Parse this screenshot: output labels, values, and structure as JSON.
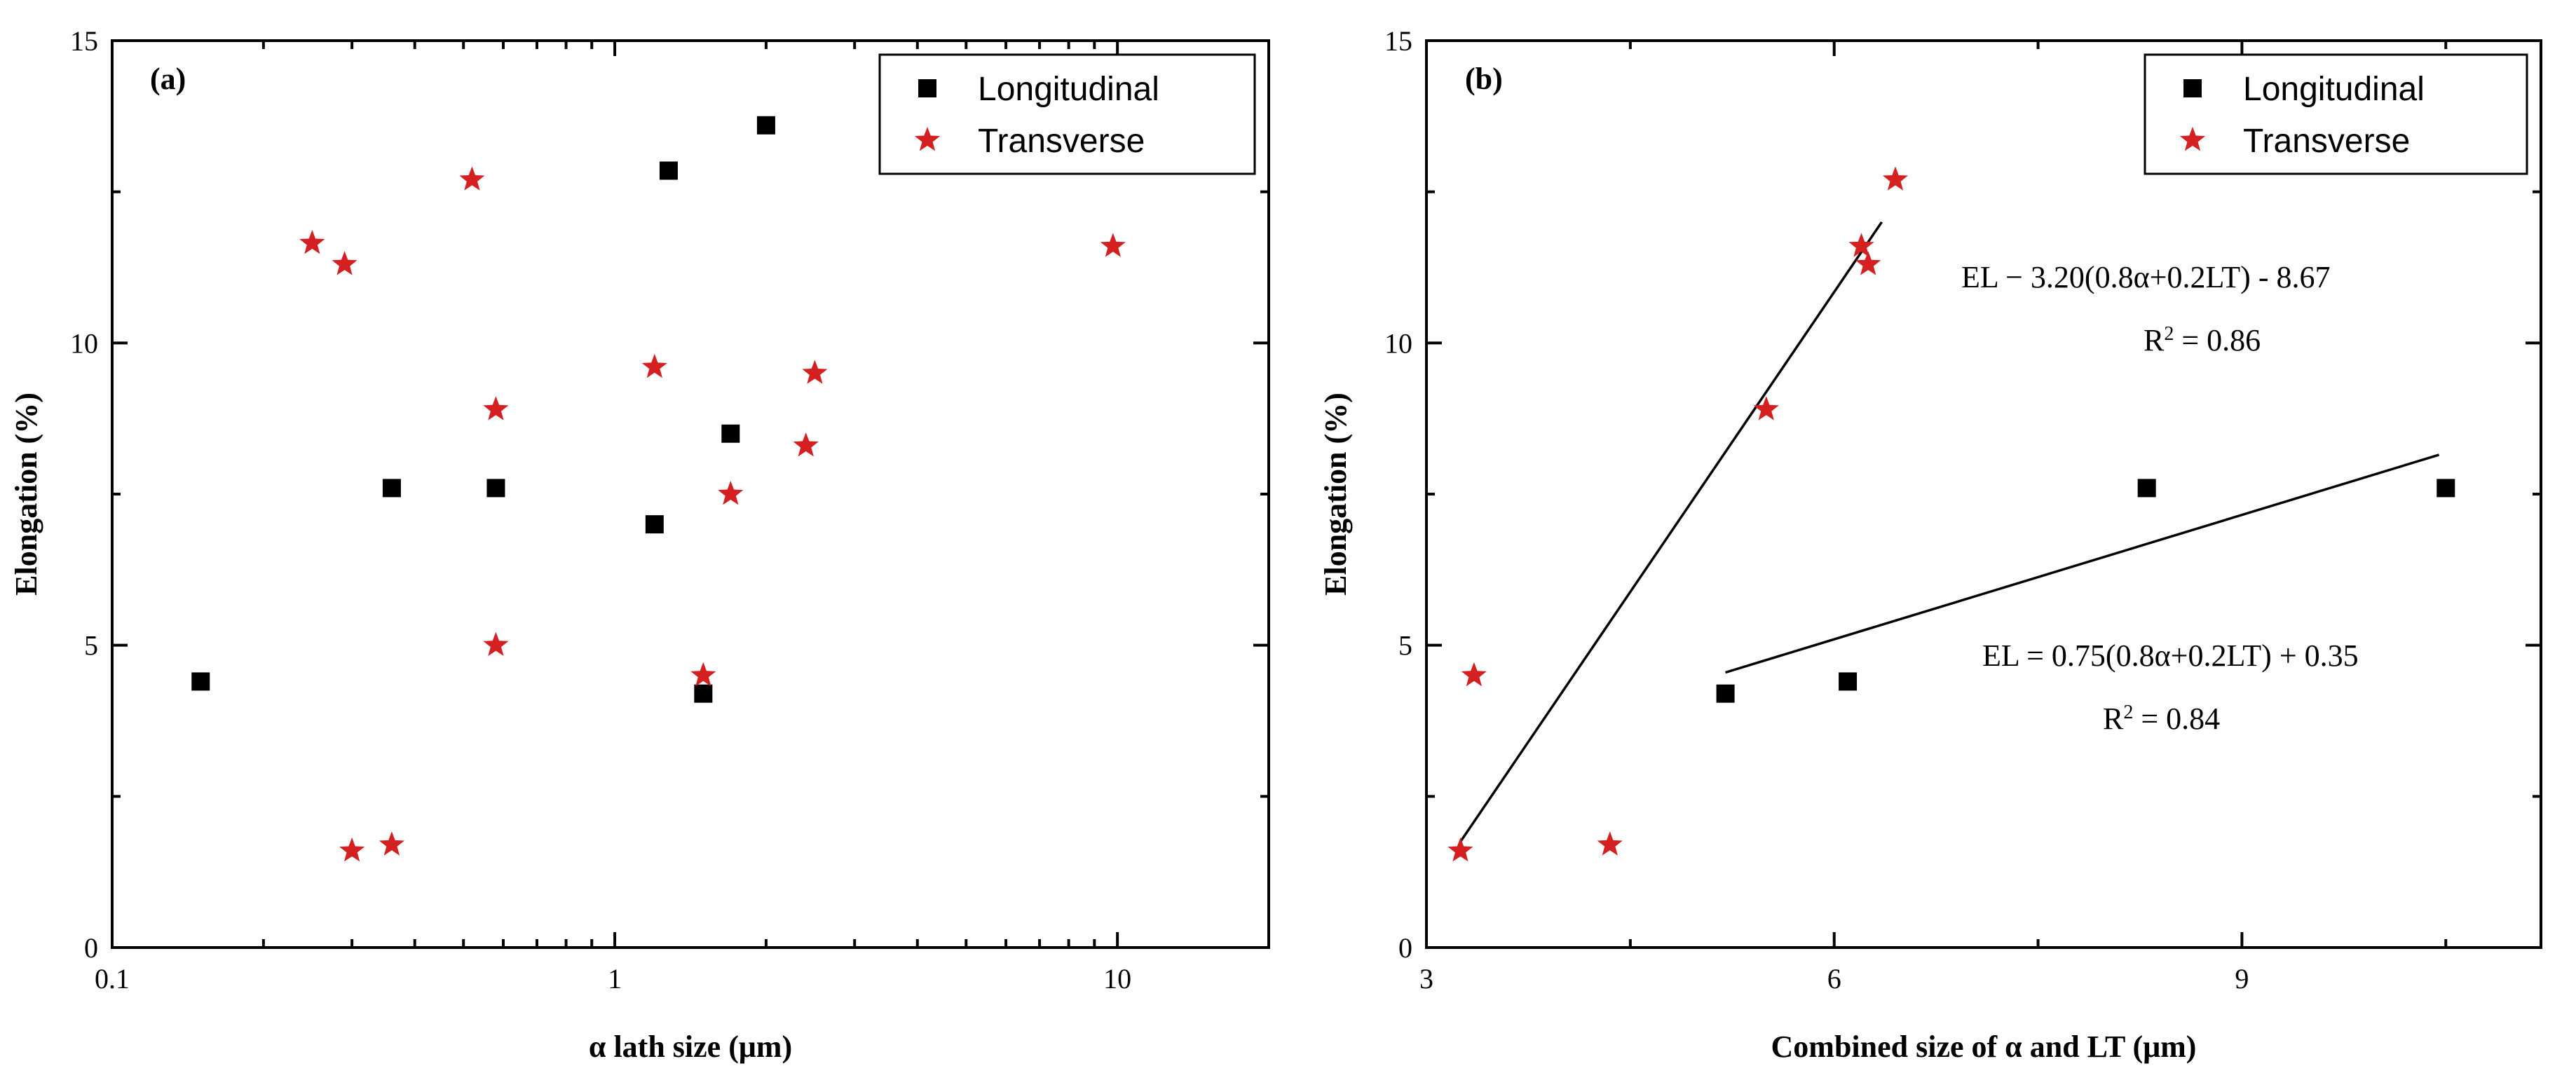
{
  "chart_data": [
    {
      "type": "scatter",
      "panel_label": "(a)",
      "xscale": "log",
      "xlim": [
        0.1,
        20
      ],
      "ylim": [
        0,
        15
      ],
      "xticks": [
        0.1,
        1,
        10
      ],
      "xtick_labels": [
        "0.1",
        "1",
        "10"
      ],
      "yticks": [
        0,
        5,
        10,
        15
      ],
      "ytick_labels": [
        "0",
        "5",
        "10",
        "15"
      ],
      "xlabel": "α lath size (μm)",
      "ylabel": "Elongation (%)",
      "legend_position": "top-right",
      "series": [
        {
          "name": "Longitudinal",
          "marker": "square",
          "color": "#000000",
          "points": [
            [
              0.15,
              4.4
            ],
            [
              0.36,
              7.6
            ],
            [
              0.58,
              7.6
            ],
            [
              1.2,
              7.0
            ],
            [
              1.28,
              12.85
            ],
            [
              1.5,
              4.2
            ],
            [
              1.7,
              8.5
            ],
            [
              2.0,
              13.6
            ]
          ]
        },
        {
          "name": "Transverse",
          "marker": "star",
          "color": "#d42020",
          "points": [
            [
              0.25,
              11.65
            ],
            [
              0.29,
              11.3
            ],
            [
              0.3,
              1.6
            ],
            [
              0.36,
              1.7
            ],
            [
              0.52,
              12.7
            ],
            [
              0.58,
              8.9
            ],
            [
              0.58,
              5.0
            ],
            [
              1.2,
              9.6
            ],
            [
              1.5,
              4.5
            ],
            [
              1.7,
              7.5
            ],
            [
              2.4,
              8.3
            ],
            [
              2.5,
              9.5
            ],
            [
              9.8,
              11.6
            ]
          ]
        }
      ]
    },
    {
      "type": "scatter",
      "panel_label": "(b)",
      "xscale": "linear",
      "xlim": [
        3,
        11.2
      ],
      "ylim": [
        0,
        15
      ],
      "xticks": [
        3,
        6,
        9
      ],
      "xtick_labels": [
        "3",
        "6",
        "9"
      ],
      "yticks": [
        0,
        5,
        10,
        15
      ],
      "ytick_labels": [
        "0",
        "5",
        "10",
        "15"
      ],
      "xlabel": "Combined size of α  and LT (μm)",
      "ylabel": "Elongation (%)",
      "legend_position": "top-right",
      "series": [
        {
          "name": "Longitudinal",
          "marker": "square",
          "color": "#000000",
          "points": [
            [
              5.2,
              4.2
            ],
            [
              6.1,
              4.4
            ],
            [
              8.3,
              7.6
            ],
            [
              10.5,
              7.6
            ]
          ]
        },
        {
          "name": "Transverse",
          "marker": "star",
          "color": "#d42020",
          "points": [
            [
              3.25,
              1.6
            ],
            [
              3.35,
              4.5
            ],
            [
              4.35,
              1.7
            ],
            [
              5.5,
              8.9
            ],
            [
              6.2,
              11.6
            ],
            [
              6.25,
              11.3
            ],
            [
              6.45,
              12.7
            ]
          ]
        }
      ],
      "fits": [
        {
          "name": "Transverse fit",
          "x_range": [
            3.25,
            6.35
          ],
          "y_range": [
            1.75,
            12.0
          ],
          "equation": "EL − 3.20(0.8α+0.2LT) - 8.67",
          "r2_label": "R",
          "r2_exp": "2",
          "r2_value": " = 0.86"
        },
        {
          "name": "Longitudinal fit",
          "x_range": [
            5.2,
            10.45
          ],
          "y_range": [
            4.55,
            8.15
          ],
          "equation": "EL = 0.75(0.8α+0.2LT) + 0.35",
          "r2_label": "R",
          "r2_exp": "2",
          "r2_value": " = 0.84"
        }
      ]
    }
  ]
}
